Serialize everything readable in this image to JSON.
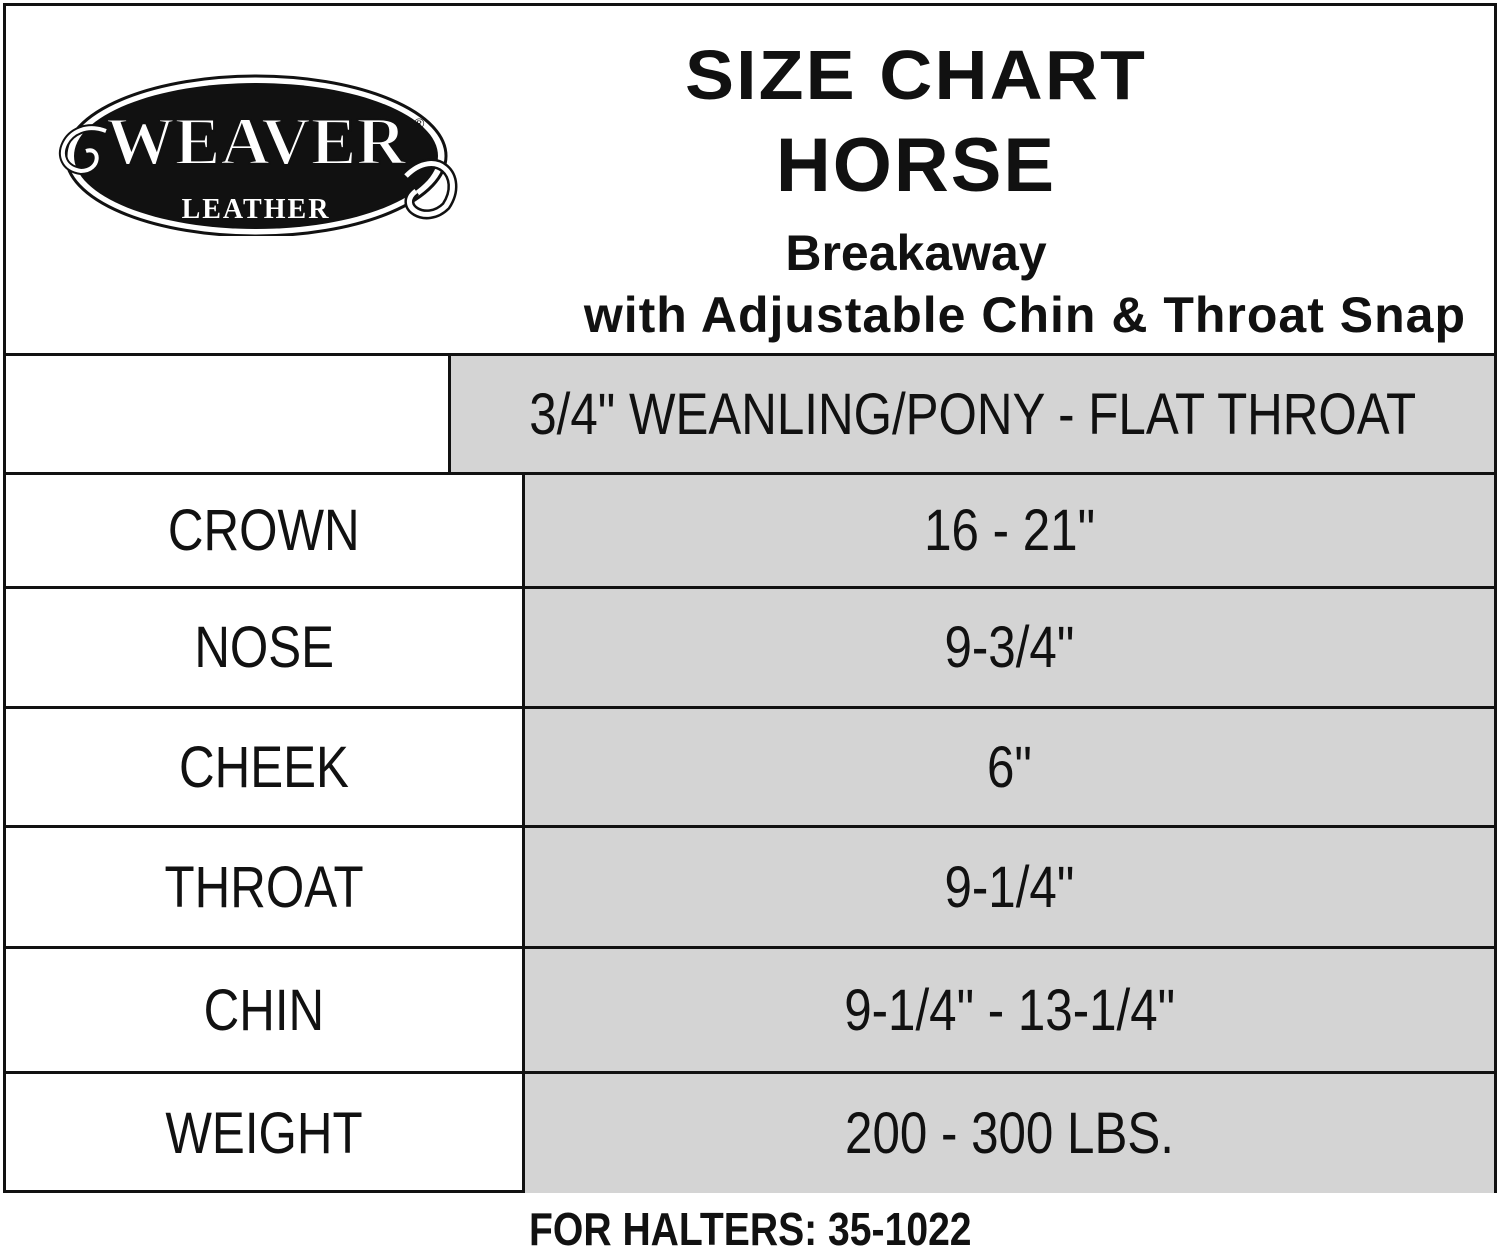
{
  "logo": {
    "brand": "WEAVER",
    "sub": "LEATHER",
    "mark": "®"
  },
  "header": {
    "title": "SIZE CHART",
    "subtitle": "HORSE",
    "line1": "Breakaway",
    "line2": "with Adjustable Chin & Throat Snap"
  },
  "table": {
    "column_header": "3/4\" WEANLING/PONY - FLAT THROAT",
    "rows": [
      {
        "label": "CROWN",
        "value": "16 - 21\""
      },
      {
        "label": "NOSE",
        "value": "9-3/4\""
      },
      {
        "label": "CHEEK",
        "value": "6\""
      },
      {
        "label": "THROAT",
        "value": "9-1/4\""
      },
      {
        "label": "CHIN",
        "value": "9-1/4\" - 13-1/4\""
      },
      {
        "label": "WEIGHT",
        "value": "200 - 300 LBS."
      }
    ]
  },
  "footer": "FOR HALTERS: 35-1022",
  "colors": {
    "cell_fill": "#d4d4d4",
    "ink": "#111111"
  }
}
